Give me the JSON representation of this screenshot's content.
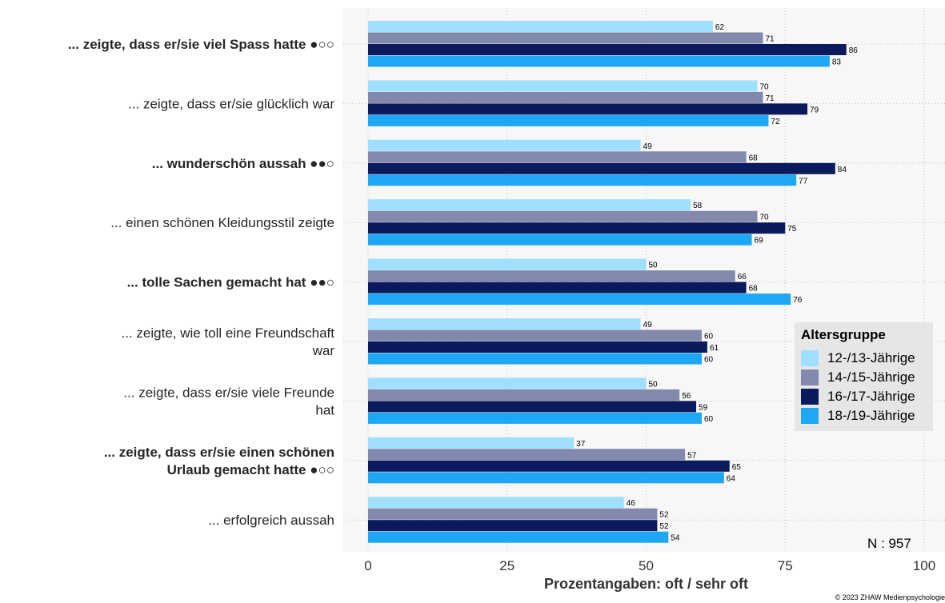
{
  "chart_data": {
    "type": "bar",
    "orientation": "horizontal",
    "categories": [
      {
        "lines": [
          "... zeigte, dass er/sie viel Spass hatte ●○○"
        ],
        "bold": true
      },
      {
        "lines": [
          "... zeigte, dass er/sie glücklich war"
        ],
        "bold": false
      },
      {
        "lines": [
          "... wunderschön aussah ●●○"
        ],
        "bold": true
      },
      {
        "lines": [
          "... einen schönen Kleidungsstil zeigte"
        ],
        "bold": false
      },
      {
        "lines": [
          "... tolle Sachen gemacht hat ●●○"
        ],
        "bold": true
      },
      {
        "lines": [
          "... zeigte, wie toll eine Freundschaft",
          "war"
        ],
        "bold": false
      },
      {
        "lines": [
          "... zeigte, dass er/sie viele Freunde",
          "hat"
        ],
        "bold": false
      },
      {
        "lines": [
          "... zeigte, dass er/sie einen schönen",
          "Urlaub gemacht hatte ●○○"
        ],
        "bold": true
      },
      {
        "lines": [
          "... erfolgreich aussah"
        ],
        "bold": false
      }
    ],
    "series": [
      {
        "name": "12-/13-Jährige",
        "color": "#9fdfff",
        "values": [
          62,
          70,
          49,
          58,
          50,
          49,
          50,
          37,
          46
        ]
      },
      {
        "name": "14-/15-Jährige",
        "color": "#8289ad",
        "values": [
          71,
          71,
          68,
          70,
          66,
          60,
          56,
          57,
          52
        ]
      },
      {
        "name": "16-/17-Jährige",
        "color": "#0a1a5c",
        "values": [
          86,
          79,
          84,
          75,
          68,
          61,
          59,
          65,
          52
        ]
      },
      {
        "name": "18-/19-Jährige",
        "color": "#1da7f5",
        "values": [
          83,
          72,
          77,
          69,
          76,
          60,
          60,
          64,
          54
        ]
      }
    ],
    "xlim": [
      0,
      100
    ],
    "xticks": [
      0,
      25,
      50,
      75,
      100
    ],
    "xlabel": "Prozentangaben: oft / sehr oft",
    "legend_title": "Altersgruppe",
    "legend_position": "right",
    "grid": true
  },
  "n_note": "N : 957",
  "copyright": "© 2023 ZHAW Medienpsychologie"
}
